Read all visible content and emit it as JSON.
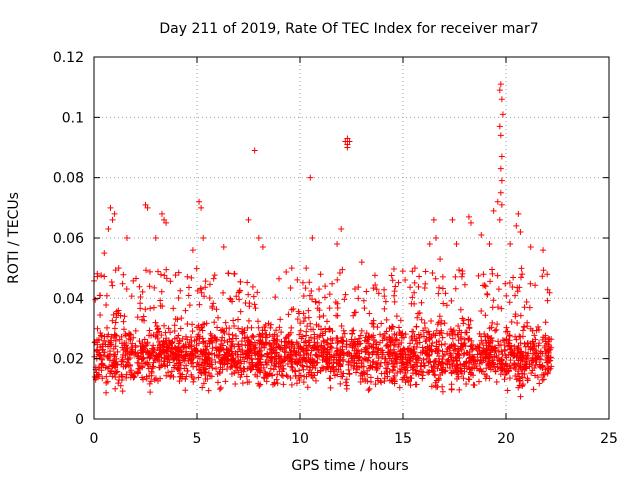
{
  "chart_data": {
    "type": "scatter",
    "title": "Day 211 of 2019, Rate Of TEC Index for receiver mar7",
    "xlabel": "GPS time / hours",
    "ylabel": "ROTI / TECUs",
    "xlim": [
      0,
      25
    ],
    "ylim": [
      0,
      0.12
    ],
    "xticks": [
      0,
      5,
      10,
      15,
      20,
      25
    ],
    "xtick_labels": [
      "0",
      "5",
      "10",
      "15",
      "20",
      "25"
    ],
    "yticks": [
      0,
      0.02,
      0.04,
      0.06,
      0.08,
      0.1,
      0.12
    ],
    "ytick_labels": [
      "0",
      "0.02",
      "0.04",
      "0.06",
      "0.08",
      "0.1",
      "0.12"
    ],
    "grid": true,
    "marker": "plus",
    "color": "#ff0000",
    "data_extent_x": [
      0,
      22.2
    ],
    "baseline_band": [
      0.008,
      0.04
    ],
    "series": [
      {
        "name": "ROTI",
        "points": [
          [
            0.3,
            0.041
          ],
          [
            0.5,
            0.055
          ],
          [
            0.7,
            0.063
          ],
          [
            0.8,
            0.07
          ],
          [
            0.9,
            0.066
          ],
          [
            1.0,
            0.068
          ],
          [
            1.2,
            0.05
          ],
          [
            1.6,
            0.06
          ],
          [
            2.5,
            0.071
          ],
          [
            2.6,
            0.07
          ],
          [
            3.3,
            0.068
          ],
          [
            3.4,
            0.066
          ],
          [
            3.5,
            0.065
          ],
          [
            3.0,
            0.06
          ],
          [
            4.8,
            0.056
          ],
          [
            5.1,
            0.072
          ],
          [
            5.2,
            0.07
          ],
          [
            5.3,
            0.06
          ],
          [
            6.3,
            0.057
          ],
          [
            7.5,
            0.066
          ],
          [
            8.0,
            0.06
          ],
          [
            8.2,
            0.057
          ],
          [
            7.8,
            0.089
          ],
          [
            9.6,
            0.05
          ],
          [
            10.3,
            0.05
          ],
          [
            10.5,
            0.08
          ],
          [
            10.6,
            0.06
          ],
          [
            11.0,
            0.048
          ],
          [
            11.8,
            0.058
          ],
          [
            12.0,
            0.063
          ],
          [
            12.2,
            0.092
          ],
          [
            12.3,
            0.093
          ],
          [
            12.3,
            0.091
          ],
          [
            12.4,
            0.092
          ],
          [
            12.3,
            0.09
          ],
          [
            13.0,
            0.052
          ],
          [
            14.5,
            0.046
          ],
          [
            16.3,
            0.058
          ],
          [
            16.5,
            0.066
          ],
          [
            16.6,
            0.06
          ],
          [
            16.8,
            0.053
          ],
          [
            17.4,
            0.066
          ],
          [
            17.6,
            0.058
          ],
          [
            18.2,
            0.067
          ],
          [
            18.3,
            0.065
          ],
          [
            18.8,
            0.061
          ],
          [
            19.2,
            0.058
          ],
          [
            19.4,
            0.069
          ],
          [
            19.6,
            0.072
          ],
          [
            19.7,
            0.109
          ],
          [
            19.75,
            0.111
          ],
          [
            19.8,
            0.106
          ],
          [
            19.85,
            0.101
          ],
          [
            19.7,
            0.097
          ],
          [
            19.75,
            0.094
          ],
          [
            19.8,
            0.087
          ],
          [
            19.75,
            0.083
          ],
          [
            19.8,
            0.079
          ],
          [
            19.75,
            0.075
          ],
          [
            19.8,
            0.071
          ],
          [
            19.7,
            0.066
          ],
          [
            20.2,
            0.058
          ],
          [
            20.5,
            0.064
          ],
          [
            20.6,
            0.068
          ],
          [
            20.7,
            0.062
          ],
          [
            21.2,
            0.057
          ],
          [
            21.8,
            0.056
          ],
          [
            22.0,
            0.048
          ]
        ]
      }
    ]
  }
}
